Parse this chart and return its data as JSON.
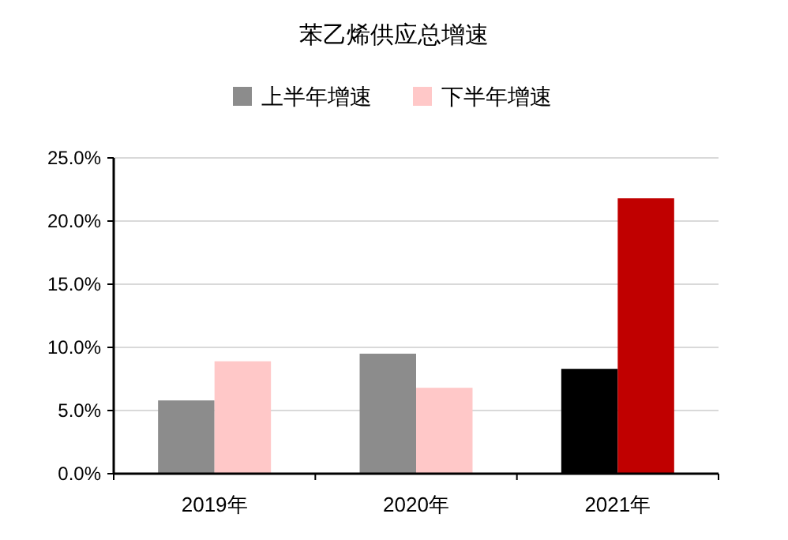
{
  "chart_data": {
    "type": "bar",
    "title": "苯乙烯供应总增速",
    "categories": [
      "2019年",
      "2020年",
      "2021年"
    ],
    "series": [
      {
        "name": "上半年增速",
        "color": "#8c8c8c",
        "colors": [
          "#8c8c8c",
          "#8c8c8c",
          "#000000"
        ],
        "values": [
          5.8,
          9.5,
          8.3
        ]
      },
      {
        "name": "下半年增速",
        "color": "#ffc8c8",
        "colors": [
          "#ffc8c8",
          "#ffc8c8",
          "#c00000"
        ],
        "values": [
          8.9,
          6.8,
          21.8
        ]
      }
    ],
    "ylim": [
      0,
      25
    ],
    "yticks": [
      {
        "value": 0,
        "label": "0.0%"
      },
      {
        "value": 5,
        "label": "5.0%"
      },
      {
        "value": 10,
        "label": "10.0%"
      },
      {
        "value": 15,
        "label": "15.0%"
      },
      {
        "value": 20,
        "label": "20.0%"
      },
      {
        "value": 25,
        "label": "25.0%"
      }
    ],
    "grid": "y",
    "legend": "top"
  }
}
